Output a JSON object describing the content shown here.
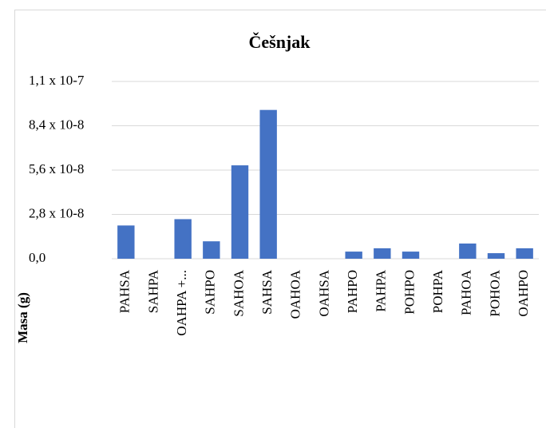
{
  "chart_data": {
    "type": "bar",
    "title": "Češnjak",
    "ylabel": "Masa (g)",
    "categories": [
      "PAHSA",
      "SAHPA",
      "OAHPA +...",
      "SAHPO",
      "SAHOA",
      "SAHSA",
      "OAHOA",
      "OAHSA",
      "PAHPO",
      "PAHPA",
      "POHPO",
      "POHPA",
      "PAHOA",
      "POHOA",
      "OAHPO"
    ],
    "values": [
      2.1e-08,
      0,
      2.5e-08,
      1.1e-08,
      5.9e-08,
      9.4e-08,
      0,
      0,
      4.5e-09,
      6.6e-09,
      4.5e-09,
      0,
      9.6e-09,
      3.5e-09,
      6.6e-09
    ],
    "color": "#4472c4",
    "ylim": [
      0,
      1.12e-07
    ],
    "yticks": [
      {
        "value": 0,
        "label": "0,0"
      },
      {
        "value": 2.8e-08,
        "label": "2,8 x 10-8"
      },
      {
        "value": 5.6e-08,
        "label": "5,6 x 10-8"
      },
      {
        "value": 8.4e-08,
        "label": "8,4 x 10-8"
      },
      {
        "value": 1.12e-07,
        "label": "1,1 x 10-7"
      }
    ],
    "grid": true
  }
}
